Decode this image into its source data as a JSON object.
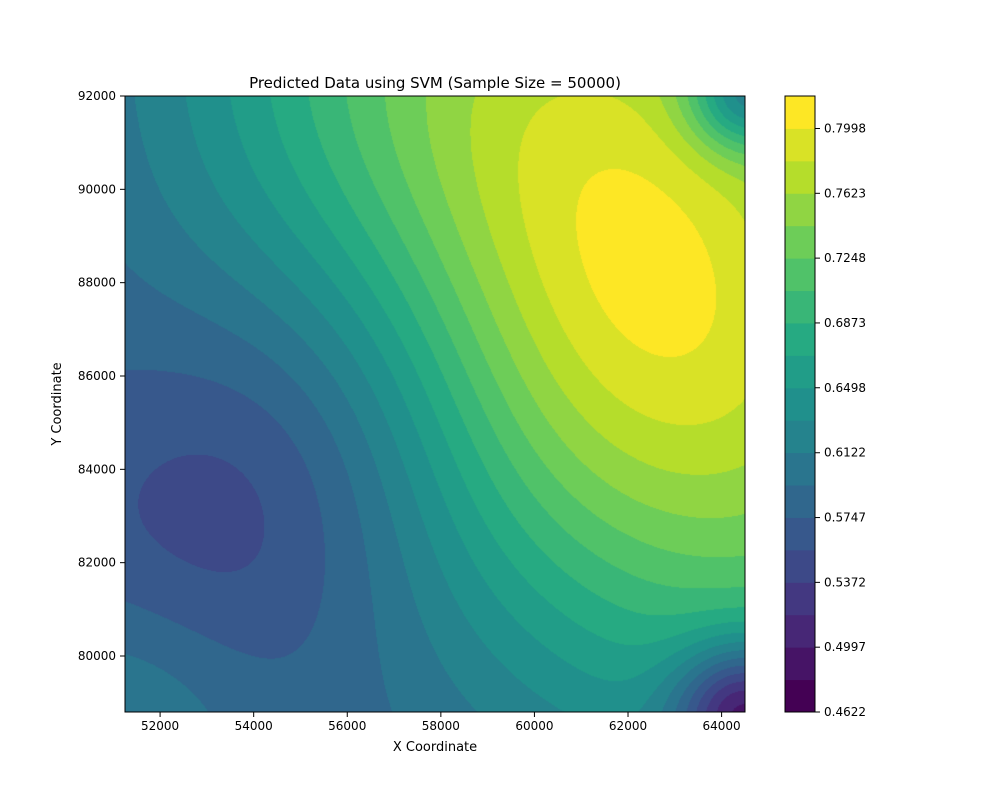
{
  "chart_data": {
    "type": "contourf",
    "title": "Predicted Data using SVM (Sample Size = 50000)",
    "xlabel": "X Coordinate",
    "ylabel": "Y Coordinate",
    "xlim": [
      51250,
      64500
    ],
    "ylim": [
      78800,
      92000
    ],
    "x_ticks": [
      52000,
      54000,
      56000,
      58000,
      60000,
      62000,
      64000
    ],
    "y_ticks": [
      80000,
      82000,
      84000,
      86000,
      88000,
      90000,
      92000
    ],
    "colormap": "viridis",
    "colorbar": {
      "min": 0.4622,
      "max": 0.8186,
      "levels": 19,
      "tick_values": [
        0.4622,
        0.4997,
        0.5372,
        0.5747,
        0.6122,
        0.6498,
        0.6873,
        0.7248,
        0.7623,
        0.7998
      ],
      "tick_labels": [
        "0.4622",
        "0.4997",
        "0.5372",
        "0.5747",
        "0.6122",
        "0.6498",
        "0.6873",
        "0.7248",
        "0.7623",
        "0.7998"
      ]
    },
    "features": [
      {
        "kind": "maximum",
        "x": 61800,
        "y": 88600,
        "value": 0.81
      },
      {
        "kind": "minimum",
        "x": 54700,
        "y": 84000,
        "value": 0.52
      },
      {
        "kind": "low-corner",
        "x": 64500,
        "y": 78800,
        "value": 0.46
      },
      {
        "kind": "low-corner",
        "x": 64500,
        "y": 92000,
        "value": 0.55
      },
      {
        "kind": "mid-edge",
        "x": 51250,
        "y": 79500,
        "value": 0.63
      }
    ]
  }
}
